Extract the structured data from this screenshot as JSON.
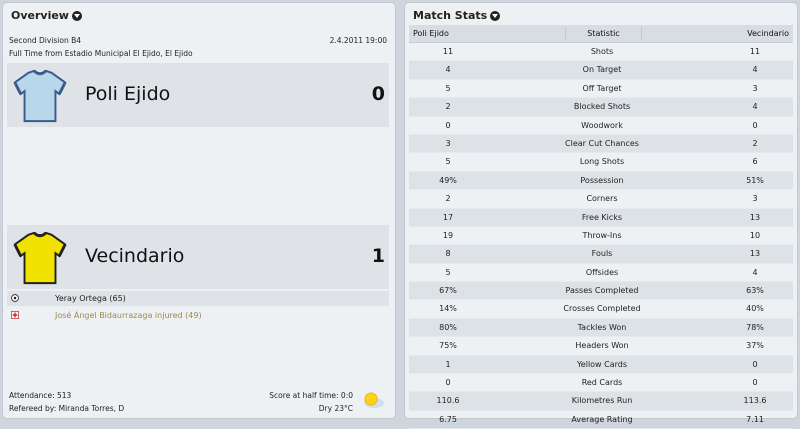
{
  "overview": {
    "title": "Overview",
    "competition": "Second Division B4",
    "date": "2.4.2011 19:00",
    "venue_line": "Full Time from Estadio Municipal El Ejido, El Ejido",
    "home": {
      "name": "Poli Ejido",
      "score": "0",
      "kit_color": "#b9d7ea",
      "trim_color": "#3a5a8c"
    },
    "away": {
      "name": "Vecindario",
      "score": "1",
      "kit_color": "#f2e200",
      "trim_color": "#222222"
    },
    "events": [
      {
        "icon": "goal-icon",
        "text": "Yeray Ortega (65)"
      },
      {
        "icon": "injury-icon",
        "text": "José Ángel Bidaurrazaga injured (49)"
      }
    ],
    "attendance": "Attendance: 513",
    "referee": "Refereed by: Miranda Torres, D",
    "half_time": "Score at half time: 0:0",
    "weather": "Dry 23°C",
    "weather_icon": "sun-icon"
  },
  "stats": {
    "title": "Match Stats",
    "columns": {
      "home": "Poli Ejido",
      "stat": "Statistic",
      "away": "Vecindario"
    },
    "rows": [
      {
        "home": "11",
        "stat": "Shots",
        "away": "11"
      },
      {
        "home": "4",
        "stat": "On Target",
        "away": "4"
      },
      {
        "home": "5",
        "stat": "Off Target",
        "away": "3"
      },
      {
        "home": "2",
        "stat": "Blocked Shots",
        "away": "4"
      },
      {
        "home": "0",
        "stat": "Woodwork",
        "away": "0"
      },
      {
        "home": "3",
        "stat": "Clear Cut Chances",
        "away": "2"
      },
      {
        "home": "5",
        "stat": "Long Shots",
        "away": "6"
      },
      {
        "home": "49%",
        "stat": "Possession",
        "away": "51%"
      },
      {
        "home": "2",
        "stat": "Corners",
        "away": "3"
      },
      {
        "home": "17",
        "stat": "Free Kicks",
        "away": "13"
      },
      {
        "home": "19",
        "stat": "Throw-Ins",
        "away": "10"
      },
      {
        "home": "8",
        "stat": "Fouls",
        "away": "13"
      },
      {
        "home": "5",
        "stat": "Offsides",
        "away": "4"
      },
      {
        "home": "67%",
        "stat": "Passes Completed",
        "away": "63%"
      },
      {
        "home": "14%",
        "stat": "Crosses Completed",
        "away": "40%"
      },
      {
        "home": "80%",
        "stat": "Tackles Won",
        "away": "78%"
      },
      {
        "home": "75%",
        "stat": "Headers Won",
        "away": "37%"
      },
      {
        "home": "1",
        "stat": "Yellow Cards",
        "away": "0"
      },
      {
        "home": "0",
        "stat": "Red Cards",
        "away": "0"
      },
      {
        "home": "110.6",
        "stat": "Kilometres Run",
        "away": "113.6"
      },
      {
        "home": "6.75",
        "stat": "Average Rating",
        "away": "7.11"
      }
    ]
  }
}
